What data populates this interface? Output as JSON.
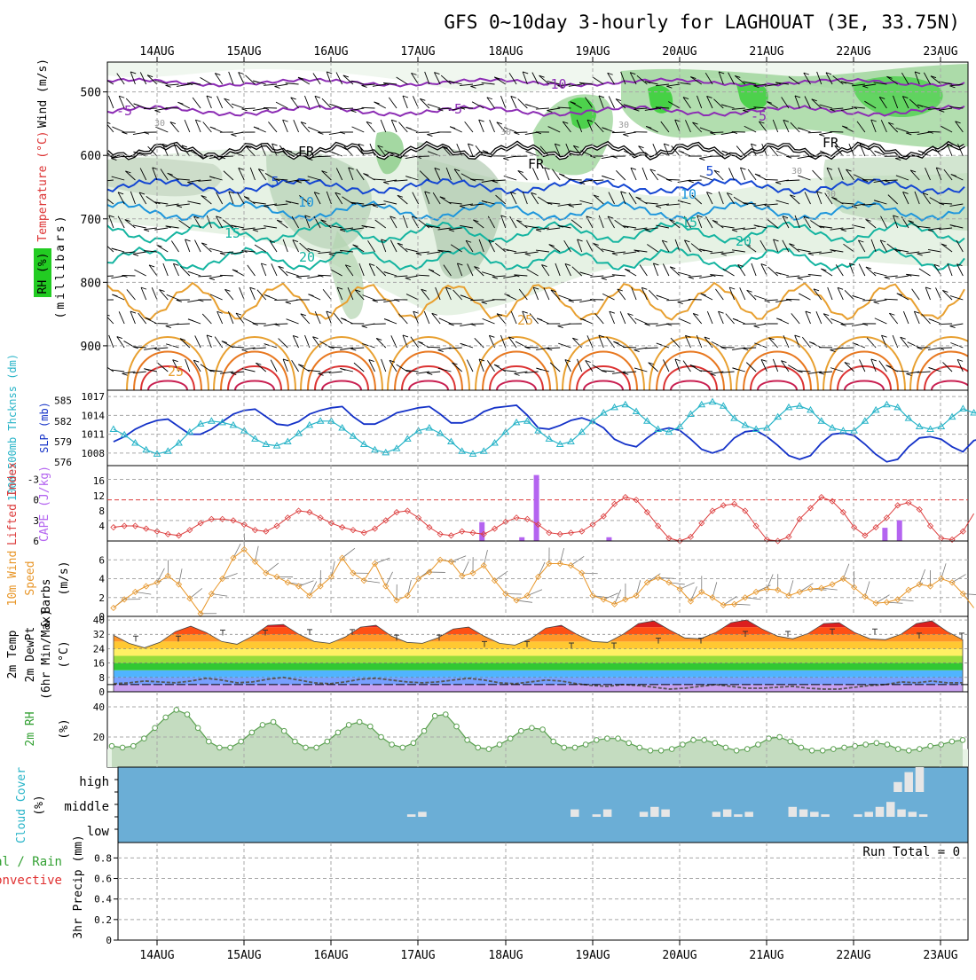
{
  "title": "GFS 0~10day 3-hourly for LAGHOUAT (3E, 33.75N)",
  "date_labels": [
    "14AUG",
    "15AUG",
    "16AUG",
    "17AUG",
    "18AUG",
    "19AUG",
    "20AUG",
    "21AUG",
    "22AUG",
    "23AUG"
  ],
  "colors": {
    "grid": "#a8a8a8",
    "rh_light": "#e6f2e4",
    "rh_mid": "#a8d8a0",
    "rh_dark": "#7ea87a",
    "rh_green": "#22cc22",
    "temp_purple": "#8c2cb4",
    "temp_blue_dark": "#1446d2",
    "temp_blue": "#1e96dc",
    "temp_teal": "#14b4a0",
    "temp_orange": "#e8a030",
    "temp_red": "#dc3232",
    "slp_blue": "#1432c8",
    "thickness_cyan": "#28b4c8",
    "cape_purple": "#b464f0",
    "lifted_red": "#dc3c3c",
    "wind_orange": "#e89628",
    "rh2m_green": "#5aa050",
    "cloud_blue": "#6baed6",
    "cloud_white": "#e6e6e6",
    "label_green": "#32a032",
    "label_red": "#e03030",
    "label_cyan": "#28b4c8",
    "label_purple": "#b464f0",
    "label_orange": "#e89628"
  },
  "panels": {
    "upper": {
      "ylabel_wind": "Wind (m/s)",
      "ylabel_temp": "Temperature (°C)",
      "ylabel_rh": "RH (%)",
      "ylabel_pressure": "(millibars)",
      "pressure_ticks": [
        "500",
        "600",
        "700",
        "800",
        "900"
      ],
      "contour_labels": [
        "-10",
        "-5",
        "-5",
        "-5",
        "FR",
        "FR",
        "FR",
        "5",
        "5",
        "10",
        "10",
        "15",
        "15",
        "20",
        "20",
        "25",
        "25",
        "30",
        "30",
        "30",
        "30",
        "30"
      ]
    },
    "slp": {
      "ylabel_left": "1000~500mb Thcknss (dm)",
      "ylabel_right": "SLP (mb)",
      "left_ticks": [
        "585",
        "582",
        "579",
        "576"
      ],
      "right_ticks": [
        "1017",
        "1014",
        "1011",
        "1008"
      ]
    },
    "cape": {
      "ylabel_left": "Lifted Index",
      "ylabel_right": "CAPE (J/kg)",
      "left_ticks": [
        "-3",
        "0",
        "3",
        "6"
      ],
      "right_ticks": [
        "16",
        "12",
        "8",
        "4"
      ]
    },
    "wind10m": {
      "ylabel_a": "10m Wind",
      "ylabel_b": "Speed",
      "ylabel_c": "& Barbs",
      "ylabel_unit": "(m/s)",
      "ticks": [
        "6",
        "4",
        "2",
        "0"
      ]
    },
    "temp2m": {
      "ylabel_a": "2m Temp",
      "ylabel_b": "2m DewPt",
      "ylabel_c": "(6hr Min/Max)",
      "ylabel_unit": "(°C)",
      "ticks": [
        "40",
        "32",
        "24",
        "16",
        "8",
        "0"
      ]
    },
    "rh2m": {
      "ylabel": "2m RH",
      "ylabel_unit": "(%)",
      "ticks": [
        "40",
        "20"
      ]
    },
    "cloud": {
      "ylabel": "Cloud Cover",
      "ylabel_unit": "(%)",
      "levels": [
        "high",
        "middle",
        "low"
      ]
    },
    "precip": {
      "ylabel_a": "Total / Rain",
      "ylabel_b": "Convective",
      "ylabel_c": "3hr Precip (mm)",
      "ticks": [
        "0.8",
        "0.6",
        "0.4",
        "0.2",
        "0"
      ],
      "run_total": "Run Total = 0"
    }
  },
  "chart_data": [
    {
      "type": "line",
      "title": "SLP and 1000~500mb thickness",
      "x_unit": "hours from 13AUG 12Z (3-hourly)",
      "x_range": [
        0,
        240
      ],
      "series": [
        {
          "name": "SLP (mb)",
          "axis": "right",
          "ylim": [
            1006,
            1018
          ],
          "values": [
            1009.8,
            1010.6,
            1011.8,
            1012.6,
            1013.2,
            1013.4,
            1012.2,
            1011.0,
            1011.0,
            1011.8,
            1013.0,
            1014.2,
            1014.8,
            1015.0,
            1013.8,
            1012.6,
            1012.4,
            1013.0,
            1014.2,
            1014.8,
            1015.2,
            1015.4,
            1013.8,
            1012.6,
            1012.6,
            1013.4,
            1014.4,
            1014.8,
            1015.2,
            1015.4,
            1014.2,
            1012.8,
            1012.8,
            1013.4,
            1014.6,
            1015.2,
            1015.4,
            1015.6,
            1014.0,
            1012.0,
            1011.8,
            1012.4,
            1013.2,
            1013.6,
            1013.0,
            1012.0,
            1010.2,
            1009.4,
            1009.0,
            1010.4,
            1011.6,
            1012.0,
            1011.6,
            1010.2,
            1008.6,
            1008.0,
            1008.6,
            1010.4,
            1011.4,
            1011.6,
            1010.6,
            1009.2,
            1007.6,
            1007.0,
            1007.6,
            1009.6,
            1011.0,
            1011.2,
            1010.8,
            1009.4,
            1007.8,
            1006.6,
            1007.0,
            1009.0,
            1010.4,
            1010.6,
            1010.2,
            1009.0,
            1008.2,
            1010.0,
            1010.4
          ]
        },
        {
          "name": "1000~500mb thickness (dm)",
          "axis": "left",
          "ylim": [
            575.5,
            586.5
          ],
          "values": [
            580.8,
            580.0,
            578.8,
            577.8,
            577.2,
            577.6,
            578.8,
            580.4,
            581.6,
            582.0,
            581.8,
            581.4,
            580.6,
            579.4,
            578.6,
            578.4,
            579.0,
            580.2,
            581.4,
            582.0,
            582.0,
            581.0,
            579.8,
            578.6,
            577.8,
            577.4,
            578.0,
            579.4,
            580.6,
            581.0,
            580.2,
            579.0,
            577.6,
            577.2,
            577.6,
            578.8,
            580.4,
            581.8,
            582.0,
            580.6,
            579.4,
            578.6,
            579.0,
            580.4,
            582.0,
            583.2,
            584.0,
            584.4,
            583.4,
            582.0,
            580.8,
            580.4,
            581.2,
            583.0,
            584.4,
            584.8,
            584.2,
            582.4,
            581.4,
            580.8,
            581.0,
            582.6,
            584.0,
            584.2,
            583.6,
            582.0,
            581.0,
            580.6,
            580.6,
            582.0,
            583.6,
            584.4,
            584.0,
            582.4,
            581.2,
            580.8,
            581.2,
            582.6,
            583.8,
            583.2,
            583.0
          ]
        }
      ]
    },
    {
      "type": "bar",
      "title": "Lifted Index and CAPE",
      "series": [
        {
          "name": "Lifted Index",
          "type": "line",
          "ylim": [
            6,
            -5
          ],
          "values": [
            4.0,
            3.8,
            3.8,
            4.2,
            4.6,
            5.0,
            5.2,
            4.4,
            3.4,
            2.8,
            2.8,
            3.0,
            3.6,
            4.4,
            4.6,
            3.8,
            2.6,
            1.6,
            1.8,
            2.6,
            3.4,
            4.0,
            4.4,
            4.8,
            4.2,
            3.0,
            1.8,
            1.6,
            2.6,
            4.0,
            5.0,
            5.2,
            4.6,
            4.8,
            5.0,
            4.2,
            3.2,
            2.6,
            2.8,
            3.6,
            4.8,
            5.0,
            4.8,
            4.6,
            3.6,
            2.4,
            0.6,
            -0.4,
            0.0,
            1.8,
            3.8,
            5.6,
            6.4,
            5.4,
            3.4,
            1.6,
            0.8,
            0.6,
            1.6,
            3.8,
            5.8,
            6.4,
            5.4,
            2.8,
            1.2,
            -0.4,
            0.2,
            1.8,
            4.0,
            5.2,
            4.0,
            2.6,
            0.8,
            0.4,
            1.4,
            3.8,
            5.6,
            5.8,
            4.6,
            2.0,
            0.2,
            -0.4,
            0.0,
            1.6,
            3.6,
            4.4,
            4.6,
            3.2
          ]
        },
        {
          "name": "CAPE (J/kg)",
          "type": "bar",
          "ylim": [
            0,
            20
          ],
          "x": [
            101.5,
            112.5,
            116.5,
            136.5,
            212.5,
            216.5
          ],
          "values": [
            5,
            1,
            17.5,
            1,
            3.5,
            5.5
          ]
        }
      ]
    },
    {
      "type": "line",
      "title": "10m Wind Speed",
      "ylim": [
        0,
        8
      ],
      "series": [
        {
          "name": "10m Wind Speed (m/s)",
          "values": [
            0.9,
            1.8,
            2.6,
            3.2,
            3.6,
            4.3,
            3.4,
            1.9,
            0.3,
            2.4,
            4.0,
            6.2,
            7.1,
            5.8,
            4.6,
            4.2,
            3.6,
            3.2,
            2.2,
            3.2,
            4.2,
            6.2,
            4.6,
            3.8,
            5.6,
            3.2,
            1.7,
            2.2,
            4.0,
            4.7,
            6.0,
            5.8,
            4.3,
            4.6,
            5.4,
            3.8,
            2.4,
            1.7,
            2.2,
            4.2,
            5.6,
            5.6,
            5.4,
            4.6,
            2.2,
            1.8,
            1.3,
            1.8,
            2.2,
            3.6,
            4.1,
            3.6,
            2.9,
            1.6,
            2.6,
            2.0,
            1.2,
            1.3,
            2.0,
            2.6,
            2.9,
            2.8,
            2.2,
            2.6,
            2.9,
            3.0,
            3.4,
            4.0,
            3.1,
            2.1,
            1.4,
            1.5,
            1.8,
            2.8,
            3.4,
            3.2,
            4.0,
            3.6,
            2.4,
            0.9,
            5.6,
            7.2,
            4.0,
            1.6,
            3.4
          ]
        }
      ]
    },
    {
      "type": "area",
      "title": "2m Temp / DewPt",
      "ylim": [
        0,
        42
      ],
      "series": [
        {
          "name": "2m Temp (°C)",
          "values": [
            31.5,
            27.0,
            24.5,
            27.5,
            33.5,
            36.5,
            33.0,
            28.0,
            26.5,
            31.0,
            37.0,
            37.5,
            32.0,
            28.0,
            27.0,
            30.5,
            36.0,
            37.0,
            31.0,
            27.5,
            27.0,
            30.0,
            35.0,
            36.0,
            31.0,
            27.0,
            26.0,
            29.5,
            35.5,
            37.0,
            32.0,
            28.0,
            27.5,
            32.0,
            38.0,
            39.5,
            34.5,
            30.0,
            29.5,
            33.0,
            38.5,
            40.0,
            35.0,
            31.0,
            29.5,
            32.5,
            38.0,
            38.5,
            33.0,
            29.5,
            29.0,
            32.0,
            38.0,
            39.5,
            33.5,
            29.0
          ]
        },
        {
          "name": "2m DewPt (°C)",
          "values": [
            4.5,
            5.0,
            6.0,
            5.5,
            5.0,
            6.0,
            7.5,
            6.5,
            5.0,
            5.5,
            7.0,
            8.0,
            6.5,
            5.0,
            4.5,
            5.5,
            7.0,
            7.5,
            6.5,
            5.5,
            5.0,
            5.5,
            6.5,
            7.5,
            6.5,
            5.0,
            4.5,
            5.5,
            6.5,
            6.0,
            4.5,
            3.5,
            3.0,
            4.0,
            3.5,
            2.5,
            1.5,
            2.0,
            3.0,
            4.0,
            3.0,
            2.0,
            2.0,
            2.5,
            3.0,
            2.0,
            1.5,
            1.5,
            2.5,
            3.5,
            4.0,
            5.5,
            5.0,
            6.0,
            5.0,
            5.0
          ]
        }
      ]
    },
    {
      "type": "area",
      "title": "2m RH",
      "ylim": [
        0,
        50
      ],
      "series": [
        {
          "name": "2m RH (%)",
          "values": [
            14,
            13,
            14,
            19,
            26,
            33,
            38,
            35,
            26,
            17,
            13,
            13,
            17,
            23,
            28,
            30,
            24,
            17,
            13,
            13,
            17,
            23,
            28,
            30,
            27,
            20,
            15,
            13,
            16,
            24,
            34,
            35,
            27,
            18,
            13,
            12,
            15,
            19,
            24,
            26,
            25,
            17,
            13,
            13,
            15,
            18,
            19,
            19,
            16,
            13,
            11,
            11,
            12,
            15,
            18,
            18,
            16,
            13,
            11,
            12,
            15,
            19,
            20,
            17,
            13,
            11,
            11,
            12,
            13,
            14,
            15,
            16,
            15,
            12,
            11,
            12,
            14,
            15,
            17,
            18
          ]
        }
      ]
    },
    {
      "type": "bar",
      "title": "Cloud Cover (%)",
      "series": [
        {
          "name": "high",
          "x": [
            216,
            219,
            222
          ],
          "values": [
            40,
            80,
            100
          ]
        },
        {
          "name": "middle",
          "x": [
            82,
            85,
            127,
            133,
            136,
            146,
            149,
            152,
            166,
            169,
            172,
            175,
            187,
            190,
            193,
            196,
            205,
            208,
            211,
            214,
            217,
            220,
            223
          ],
          "values": [
            10,
            20,
            30,
            10,
            30,
            20,
            40,
            30,
            20,
            30,
            10,
            20,
            40,
            30,
            20,
            10,
            10,
            20,
            40,
            60,
            30,
            20,
            10
          ]
        },
        {
          "name": "low",
          "x": [],
          "values": []
        }
      ]
    },
    {
      "type": "bar",
      "title": "3hr Precip (mm)",
      "ylim": [
        0,
        0.95
      ],
      "series": [
        {
          "name": "Total / Rain",
          "values": []
        },
        {
          "name": "Convective",
          "values": []
        }
      ],
      "run_total": 0
    }
  ]
}
